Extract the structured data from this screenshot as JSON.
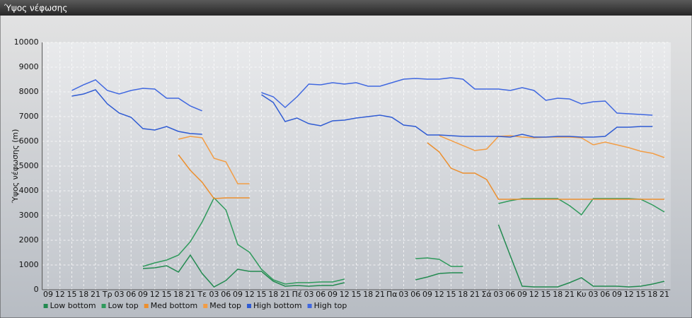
{
  "window": {
    "title": "Ύψος νέφωσης"
  },
  "chart_data": {
    "type": "line",
    "y_label": "Ύψος νέφωσης (m)",
    "categories": [
      "09",
      "12",
      "15",
      "18",
      "21",
      "Τρ",
      "03",
      "06",
      "09",
      "12",
      "15",
      "18",
      "21",
      "Τε",
      "03",
      "06",
      "09",
      "12",
      "15",
      "18",
      "21",
      "Πέ",
      "03",
      "06",
      "09",
      "12",
      "15",
      "18",
      "21",
      "Πα",
      "03",
      "06",
      "09",
      "12",
      "15",
      "18",
      "21",
      "Σά",
      "03",
      "06",
      "09",
      "12",
      "15",
      "18",
      "21",
      "Κυ",
      "03",
      "06",
      "09",
      "12",
      "15",
      "18",
      "21"
    ],
    "series": [
      {
        "name": "Low bottom",
        "color": "#238a50",
        "values": [
          null,
          null,
          null,
          null,
          null,
          null,
          null,
          null,
          857,
          886,
          971,
          714,
          1400,
          657,
          114,
          371,
          829,
          743,
          743,
          343,
          143,
          171,
          143,
          171,
          171,
          286,
          null,
          null,
          null,
          null,
          null,
          400,
          514,
          657,
          686,
          686,
          null,
          null,
          2629,
          1371,
          143,
          114,
          114,
          114,
          286,
          486,
          143,
          143,
          143,
          114,
          143,
          229,
          343
        ]
      },
      {
        "name": "Low top",
        "color": "#2f9a5c",
        "values": [
          null,
          null,
          null,
          null,
          null,
          null,
          null,
          null,
          943,
          1086,
          1200,
          1400,
          1943,
          2743,
          3714,
          3229,
          1829,
          1514,
          829,
          400,
          229,
          286,
          286,
          314,
          314,
          429,
          null,
          null,
          null,
          null,
          null,
          1257,
          1286,
          1229,
          943,
          943,
          null,
          null,
          3486,
          3600,
          3686,
          3686,
          3686,
          3686,
          3400,
          3029,
          3686,
          3686,
          3686,
          3686,
          3657,
          3429,
          3143
        ]
      },
      {
        "name": "Med bottom",
        "color": "#ec8f2e",
        "values": [
          null,
          null,
          null,
          null,
          null,
          null,
          null,
          null,
          null,
          null,
          null,
          5457,
          4829,
          4343,
          3686,
          3714,
          3714,
          3714,
          null,
          null,
          null,
          null,
          null,
          null,
          null,
          null,
          null,
          null,
          null,
          null,
          null,
          null,
          5943,
          5571,
          4914,
          4714,
          4714,
          4457,
          3657,
          3657,
          3657,
          3657,
          3657,
          3657,
          3657,
          3657,
          3657,
          3657,
          3657,
          3657,
          3657,
          3657,
          3657
        ]
      },
      {
        "name": "Med top",
        "color": "#f29d45",
        "values": [
          null,
          null,
          null,
          null,
          null,
          null,
          null,
          null,
          null,
          null,
          null,
          6086,
          6200,
          6143,
          5314,
          5171,
          4286,
          4286,
          null,
          null,
          null,
          null,
          null,
          null,
          null,
          null,
          null,
          null,
          null,
          null,
          null,
          null,
          null,
          6229,
          6029,
          5829,
          5629,
          5686,
          6200,
          6229,
          6171,
          6143,
          6171,
          6171,
          6171,
          6143,
          5857,
          5971,
          5857,
          5743,
          5600,
          5514,
          5343
        ]
      },
      {
        "name": "High bottom",
        "color": "#2f5bd3",
        "values": [
          null,
          null,
          7829,
          7914,
          8086,
          7514,
          7143,
          6971,
          6514,
          6457,
          6600,
          6400,
          6314,
          6286,
          null,
          null,
          null,
          null,
          7886,
          7571,
          6800,
          6943,
          6714,
          6629,
          6829,
          6857,
          6943,
          7000,
          7057,
          6971,
          6657,
          6600,
          6257,
          6257,
          6229,
          6200,
          6200,
          6200,
          6200,
          6171,
          6286,
          6171,
          6171,
          6200,
          6200,
          6171,
          6171,
          6200,
          6571,
          6571,
          6600,
          6600,
          null
        ]
      },
      {
        "name": "High top",
        "color": "#4068e0",
        "values": [
          null,
          null,
          8057,
          8286,
          8486,
          8057,
          7914,
          8057,
          8143,
          8114,
          7743,
          7743,
          7429,
          7229,
          null,
          null,
          null,
          null,
          7971,
          7800,
          7371,
          7800,
          8314,
          8286,
          8371,
          8314,
          8371,
          8229,
          8229,
          8371,
          8514,
          8543,
          8514,
          8514,
          8571,
          8514,
          8114,
          8114,
          8114,
          8057,
          8171,
          8057,
          7657,
          7743,
          7714,
          7514,
          7600,
          7629,
          7143,
          7114,
          7086,
          7057,
          null
        ]
      }
    ],
    "ylim": [
      0,
      10000
    ],
    "yticks": [
      0,
      1000,
      2000,
      3000,
      4000,
      5000,
      6000,
      7000,
      8000,
      9000,
      10000
    ],
    "grid": true,
    "legend": "bottom-left"
  }
}
